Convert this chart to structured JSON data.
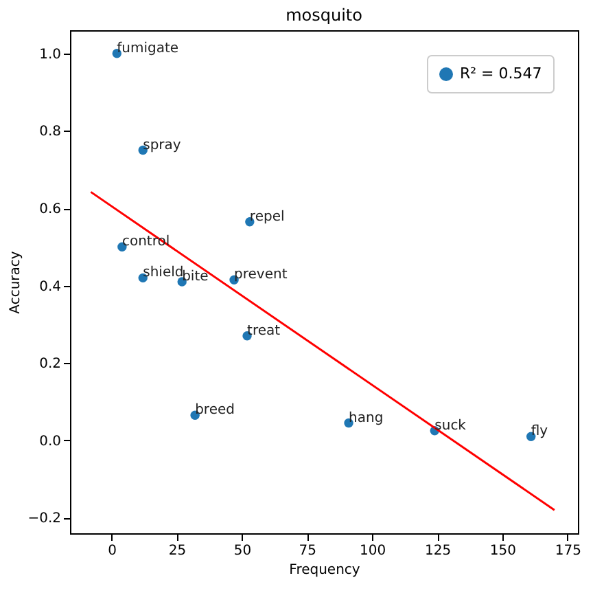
{
  "chart_data": {
    "type": "scatter",
    "title": "mosquito",
    "xlabel": "Frequency",
    "ylabel": "Accuracy",
    "xlim": [
      -16,
      179
    ],
    "ylim": [
      -0.24,
      1.06
    ],
    "xticks": [
      0,
      25,
      50,
      75,
      100,
      125,
      150,
      175
    ],
    "yticks": [
      -0.2,
      {
        "value": 0,
        "label": "0.0"
      },
      0.2,
      0.4,
      0.6,
      0.8,
      {
        "value": 1,
        "label": "1.0"
      }
    ],
    "grid": false,
    "legend": "top right",
    "series": [
      {
        "name": "R² = 0.547",
        "color": "#1f77b4",
        "marker": "circle",
        "x": [
          2,
          12,
          53,
          4,
          12,
          27,
          47,
          52,
          32,
          91,
          124,
          161
        ],
        "values": [
          1.0,
          0.75,
          0.565,
          0.5,
          0.42,
          0.41,
          0.415,
          0.27,
          0.065,
          0.045,
          0.025,
          0.01
        ]
      },
      {
        "color": "#ff0000",
        "type": "line",
        "marker": "none",
        "line_style": "solid",
        "x": [
          -8,
          170
        ],
        "values": [
          0.642,
          -0.18
        ]
      }
    ],
    "annotations": [
      {
        "text": "fumigate",
        "x": 2,
        "y": 1.0
      },
      {
        "text": "spray",
        "x": 12,
        "y": 0.75
      },
      {
        "text": "repel",
        "x": 53,
        "y": 0.565
      },
      {
        "text": "control",
        "x": 4,
        "y": 0.5
      },
      {
        "text": "shield",
        "x": 12,
        "y": 0.42
      },
      {
        "text": "bite",
        "x": 27,
        "y": 0.41
      },
      {
        "text": "prevent",
        "x": 47,
        "y": 0.415
      },
      {
        "text": "treat",
        "x": 52,
        "y": 0.27
      },
      {
        "text": "breed",
        "x": 32,
        "y": 0.065
      },
      {
        "text": "hang",
        "x": 91,
        "y": 0.045
      },
      {
        "text": "suck",
        "x": 124,
        "y": 0.025
      },
      {
        "text": "fly",
        "x": 161,
        "y": 0.01
      }
    ]
  }
}
